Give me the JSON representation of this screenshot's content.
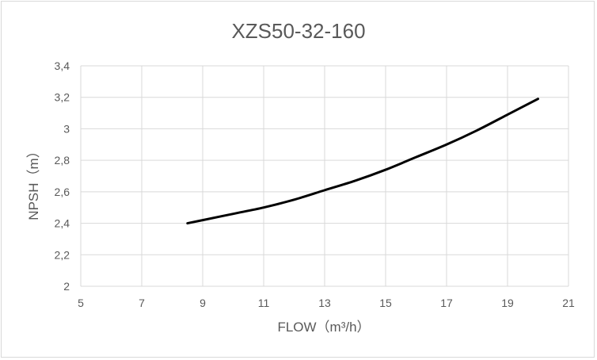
{
  "chart_data": {
    "type": "line",
    "title": "XZS50-32-160",
    "xlabel": "FLOW（m³/h）",
    "ylabel": "NPSH（m）",
    "xlim": [
      5,
      21
    ],
    "ylim": [
      2,
      3.4
    ],
    "x_ticks": [
      "5",
      "7",
      "9",
      "11",
      "13",
      "15",
      "17",
      "19",
      "21"
    ],
    "y_ticks": [
      "2",
      "2,2",
      "2,4",
      "2,6",
      "2,8",
      "3",
      "3,2",
      "3,4"
    ],
    "grid": true,
    "legend": "none",
    "series": [
      {
        "color": "#000000",
        "x": [
          8.5,
          9,
          10,
          11,
          12,
          13,
          14,
          15,
          16,
          17,
          18,
          19,
          20
        ],
        "y": [
          2.4,
          2.42,
          2.46,
          2.5,
          2.55,
          2.61,
          2.67,
          2.74,
          2.82,
          2.9,
          2.99,
          3.09,
          3.19
        ]
      }
    ],
    "colors": {
      "grid": "#d9d9d9",
      "text": "#595959",
      "line": "#000000"
    }
  }
}
